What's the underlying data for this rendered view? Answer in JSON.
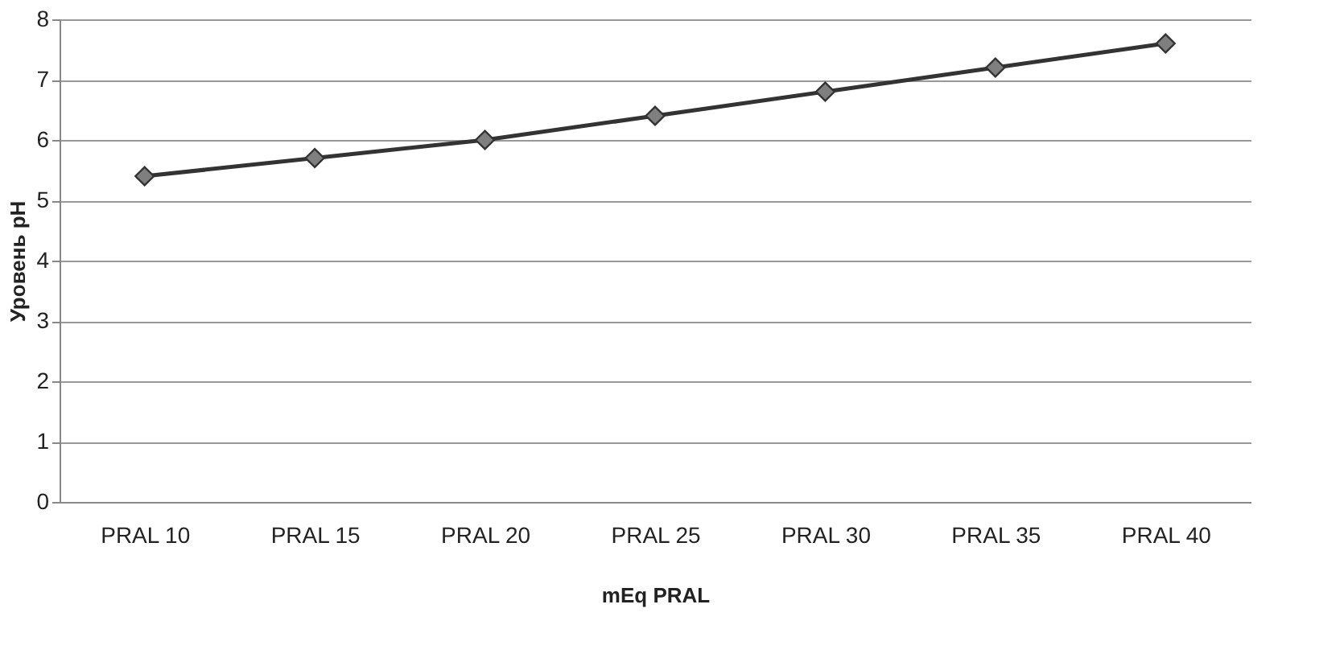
{
  "chart_data": {
    "type": "line",
    "xlabel": "mEq PRAL",
    "ylabel": "Уровень pH",
    "categories": [
      "PRAL 10",
      "PRAL 15",
      "PRAL 20",
      "PRAL 25",
      "PRAL 30",
      "PRAL 35",
      "PRAL 40"
    ],
    "series": [
      {
        "color": "#333333",
        "values": [
          5.4,
          5.7,
          6.0,
          6.4,
          6.8,
          7.2,
          7.6
        ]
      }
    ],
    "ylim": [
      0,
      8
    ],
    "yticks": [
      0,
      1,
      2,
      3,
      4,
      5,
      6,
      7,
      8
    ],
    "grid": "y",
    "marker": "diamond",
    "line_style": "solid"
  }
}
